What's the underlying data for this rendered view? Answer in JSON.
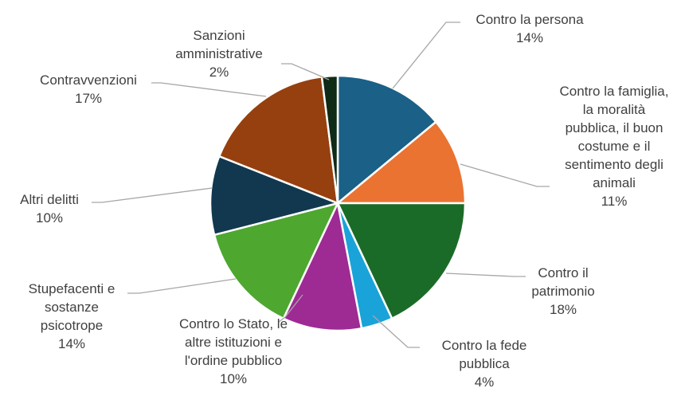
{
  "chart_data": {
    "type": "pie",
    "title": "",
    "series": [
      {
        "slices": [
          {
            "label_lines": [
              "Contro la persona"
            ],
            "pct_label": "14%",
            "value": 14,
            "color": "#1a6087"
          },
          {
            "label_lines": [
              "Contro la famiglia,",
              "la moralità",
              "pubblica, il buon",
              "costume e il",
              "sentimento degli",
              "animali"
            ],
            "pct_label": "11%",
            "value": 11,
            "color": "#ea7332"
          },
          {
            "label_lines": [
              "Contro il",
              "patrimonio"
            ],
            "pct_label": "18%",
            "value": 18,
            "color": "#1b6b28"
          },
          {
            "label_lines": [
              "Contro la fede",
              "pubblica"
            ],
            "pct_label": "4%",
            "value": 4,
            "color": "#1aa3d9"
          },
          {
            "label_lines": [
              "Contro lo Stato, le",
              "altre istituzioni e",
              "l'ordine pubblico"
            ],
            "pct_label": "10%",
            "value": 10,
            "color": "#9e2a94"
          },
          {
            "label_lines": [
              "Stupefacenti e",
              "sostanze",
              "psicotrope"
            ],
            "pct_label": "14%",
            "value": 14,
            "color": "#4ea72f"
          },
          {
            "label_lines": [
              "Altri delitti"
            ],
            "pct_label": "10%",
            "value": 10,
            "color": "#11384f"
          },
          {
            "label_lines": [
              "Contravvenzioni"
            ],
            "pct_label": "17%",
            "value": 17,
            "color": "#96400f"
          },
          {
            "label_lines": [
              "Sanzioni",
              "amministrative"
            ],
            "pct_label": "2%",
            "value": 2,
            "color": "#0f2a16"
          }
        ]
      }
    ],
    "legend": "none",
    "label_style": "outside labels with leader lines"
  }
}
